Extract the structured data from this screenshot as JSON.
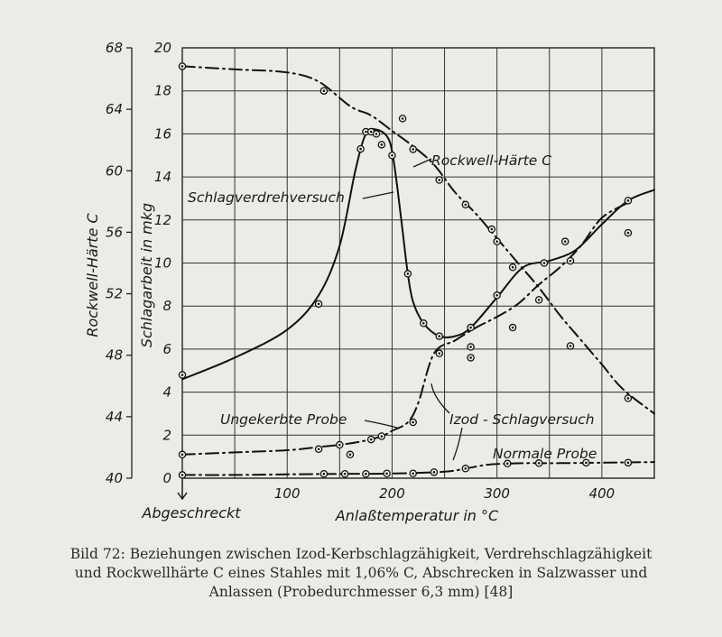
{
  "chart_data": {
    "type": "line",
    "xlabel": "Anlaßtemperatur in °C",
    "x_origin_label": "Abgeschreckt",
    "x_ticks": [
      100,
      200,
      300,
      400
    ],
    "xlim": [
      0,
      450
    ],
    "y_left_label": "Rockwell-Härte C",
    "y_left_ticks": [
      40,
      44,
      48,
      52,
      56,
      60,
      64,
      68
    ],
    "y_left_lim": [
      40,
      68
    ],
    "y_right_label": "Schlagarbeit in mkg",
    "y_right_ticks": [
      0,
      2,
      4,
      6,
      8,
      10,
      12,
      14,
      16,
      18,
      20
    ],
    "y_right_lim": [
      0,
      20
    ],
    "grid": true,
    "series": [
      {
        "name": "Rockwell-Härte C",
        "axis": "left",
        "style": "dashdot",
        "x": [
          0,
          50,
          100,
          130,
          160,
          180,
          200,
          220,
          240,
          260,
          280,
          300,
          320,
          340,
          360,
          380,
          400,
          420,
          450
        ],
        "y": [
          66.8,
          66.6,
          66.4,
          65.8,
          64.2,
          63.6,
          62.6,
          61.6,
          60.4,
          58.6,
          57.2,
          55.6,
          54.0,
          52.4,
          50.6,
          49.0,
          47.4,
          45.8,
          44.2
        ],
        "points_x": [
          0,
          135,
          210,
          220,
          245,
          270,
          295,
          340,
          370,
          425
        ],
        "points_y": [
          66.8,
          65.2,
          63.4,
          61.4,
          59.4,
          57.8,
          56.2,
          51.6,
          48.6,
          45.2
        ]
      },
      {
        "name": "Schlagverdrehversuch",
        "axis": "right",
        "style": "solid",
        "x": [
          0,
          50,
          100,
          130,
          150,
          165,
          175,
          185,
          195,
          200,
          205,
          210,
          215,
          220,
          230,
          245,
          260,
          275,
          300,
          325,
          350,
          375,
          400,
          425,
          450
        ],
        "y": [
          4.6,
          5.6,
          6.9,
          8.5,
          10.8,
          14.3,
          16.0,
          16.2,
          15.9,
          15.2,
          13.5,
          11.5,
          9.5,
          8.2,
          7.2,
          6.6,
          6.6,
          7.0,
          8.4,
          9.8,
          10.1,
          10.6,
          11.8,
          12.9,
          13.4
        ],
        "points_x": [
          0,
          130,
          170,
          175,
          180,
          185,
          190,
          200,
          215,
          230,
          245,
          275,
          300,
          315,
          345,
          370,
          425
        ],
        "points_y": [
          4.8,
          8.1,
          15.3,
          16.1,
          16.1,
          16.0,
          15.5,
          15.0,
          9.5,
          7.2,
          6.6,
          7.0,
          8.5,
          9.8,
          10.0,
          10.1,
          12.9
        ]
      },
      {
        "name": "Izod-Schlagversuch: Ungekerbte Probe",
        "axis": "right",
        "style": "dashdot",
        "x": [
          0,
          50,
          100,
          130,
          150,
          170,
          190,
          200,
          215,
          225,
          240,
          260,
          280,
          300,
          320,
          340,
          360,
          380,
          400,
          425
        ],
        "y": [
          1.1,
          1.2,
          1.3,
          1.45,
          1.55,
          1.7,
          1.95,
          2.2,
          2.6,
          3.5,
          5.8,
          6.4,
          7.0,
          7.5,
          8.1,
          9.0,
          9.8,
          10.8,
          12.1,
          12.8
        ],
        "points_x": [
          0,
          130,
          150,
          160,
          180,
          190,
          220,
          245,
          275,
          275,
          300,
          315,
          365,
          425
        ],
        "points_y": [
          1.1,
          1.35,
          1.55,
          1.1,
          1.8,
          1.95,
          2.6,
          5.8,
          6.1,
          5.6,
          11.0,
          7.0,
          11.0,
          11.4
        ]
      },
      {
        "name": "Izod-Schlagversuch: Normale Probe",
        "axis": "right",
        "style": "dashdot",
        "x": [
          0,
          50,
          100,
          150,
          200,
          250,
          270,
          290,
          310,
          330,
          360,
          400,
          450
        ],
        "y": [
          0.15,
          0.15,
          0.18,
          0.2,
          0.22,
          0.3,
          0.45,
          0.62,
          0.68,
          0.7,
          0.7,
          0.72,
          0.75
        ],
        "points_x": [
          0,
          135,
          155,
          175,
          195,
          220,
          240,
          270,
          310,
          340,
          385,
          425
        ],
        "points_y": [
          0.15,
          0.2,
          0.2,
          0.2,
          0.22,
          0.22,
          0.28,
          0.45,
          0.68,
          0.7,
          0.72,
          0.72
        ]
      }
    ],
    "annotations": [
      "Schlagverdrehversuch",
      "Rockwell-Härte C",
      "Ungekerbte Probe",
      "Izod-Schlagversuch",
      "Normale Probe"
    ]
  },
  "caption": {
    "line1": "Bild 72: Beziehungen zwischen Izod-Kerbschlagzähigkeit, Verdrehschlagzähigkeit",
    "line2": "und Rockwellhärte C eines Stahles mit 1,06% C, Abschrecken in Salzwasser und",
    "line3": "Anlassen (Probedurchmesser 6,3 mm) [48]"
  },
  "labels": {
    "schlagverdreh": "Schlagverdrehversuch",
    "rockwell": "Rockwell-Härte C",
    "ungekerbte": "Ungekerbte Probe",
    "izod": "Izod - Schlagversuch",
    "normale": "Normale Probe"
  }
}
